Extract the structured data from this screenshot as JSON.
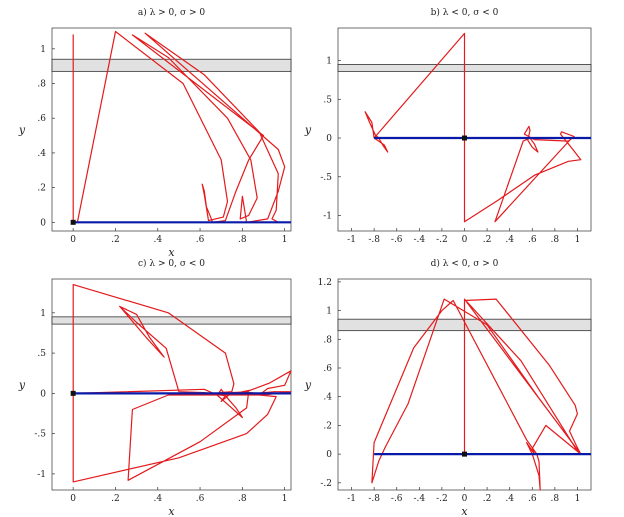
{
  "chart_data": [
    {
      "type": "line",
      "title": "a) λ > 0, σ > 0",
      "xlabel": "x",
      "ylabel": "y",
      "xlim": [
        -0.1,
        1.03
      ],
      "ylim": [
        -0.05,
        1.12
      ],
      "xticks": [
        0,
        0.2,
        0.4,
        0.6,
        0.8,
        1
      ],
      "yticks": [
        0,
        0.2,
        0.4,
        0.6,
        0.8,
        1
      ],
      "band": [
        0.87,
        0.94
      ],
      "baseline": [
        0,
        1.03
      ],
      "point": [
        0,
        0
      ],
      "series": [
        {
          "color": "#e41a1c",
          "points": [
            [
              0,
              0
            ],
            [
              0,
              1.08
            ],
            [
              0,
              0
            ],
            [
              0.02,
              0
            ],
            [
              0.2,
              1.1
            ],
            [
              0.52,
              0.8
            ],
            [
              0.7,
              0.36
            ],
            [
              0.73,
              0.12
            ],
            [
              0.71,
              0.03
            ],
            [
              0.64,
              0.01
            ],
            [
              0.62,
              0.16
            ],
            [
              0.61,
              0.22
            ],
            [
              0.62,
              0.18
            ],
            [
              0.63,
              0.09
            ],
            [
              0.66,
              0.0
            ],
            [
              0.72,
              0.01
            ],
            [
              0.77,
              0.18
            ],
            [
              0.83,
              0.36
            ],
            [
              0.9,
              0.5
            ],
            [
              0.28,
              1.08
            ],
            [
              0.45,
              0.95
            ],
            [
              0.73,
              0.6
            ],
            [
              0.84,
              0.36
            ],
            [
              0.87,
              0.14
            ],
            [
              0.83,
              0.04
            ],
            [
              0.79,
              0.02
            ],
            [
              0.8,
              0.15
            ],
            [
              0.82,
              0.0
            ],
            [
              0.92,
              0.02
            ],
            [
              0.97,
              0.18
            ],
            [
              1.0,
              0.32
            ],
            [
              0.97,
              0.42
            ],
            [
              0.34,
              1.09
            ],
            [
              0.62,
              0.85
            ],
            [
              0.88,
              0.52
            ],
            [
              0.97,
              0.28
            ],
            [
              0.96,
              0.07
            ],
            [
              0.94,
              0.02
            ],
            [
              0.97,
              0.0
            ],
            [
              1.03,
              0.0
            ]
          ]
        }
      ]
    },
    {
      "type": "line",
      "title": "b) λ < 0, σ < 0",
      "xlabel": "",
      "ylabel": "y",
      "xlim": [
        -1.12,
        1.12
      ],
      "ylim": [
        -1.2,
        1.42
      ],
      "xticks": [
        -1,
        -0.8,
        -0.6,
        -0.4,
        -0.2,
        0,
        0.2,
        0.4,
        0.6,
        0.8,
        1
      ],
      "yticks": [
        -1,
        -0.5,
        0,
        0.5,
        1
      ],
      "band": [
        0.86,
        0.95
      ],
      "baseline": [
        -0.8,
        1.12
      ],
      "point": [
        0,
        0
      ],
      "series": [
        {
          "color": "#e41a1c",
          "points": [
            [
              -0.8,
              0
            ],
            [
              -0.82,
              0.2
            ],
            [
              -0.88,
              0.34
            ],
            [
              -0.84,
              0.2
            ],
            [
              -0.79,
              0.04
            ],
            [
              -0.76,
              0.0
            ],
            [
              -0.72,
              -0.1
            ],
            [
              -0.68,
              -0.18
            ],
            [
              -0.71,
              -0.09
            ],
            [
              -0.8,
              0
            ],
            [
              0.0,
              1.35
            ],
            [
              0.0,
              -1.08
            ],
            [
              0.3,
              -0.8
            ],
            [
              0.62,
              -0.48
            ],
            [
              0.92,
              -0.3
            ],
            [
              1.03,
              -0.28
            ],
            [
              0.95,
              -0.13
            ],
            [
              0.85,
              0.05
            ],
            [
              0.86,
              0.08
            ],
            [
              0.97,
              0.02
            ],
            [
              0.92,
              -0.04
            ],
            [
              0.62,
              -0.02
            ],
            [
              0.53,
              0.05
            ],
            [
              0.57,
              0.15
            ],
            [
              0.58,
              0.1
            ],
            [
              0.56,
              -0.03
            ],
            [
              0.6,
              -0.12
            ],
            [
              0.65,
              -0.18
            ],
            [
              0.62,
              -0.08
            ],
            [
              0.58,
              0.0
            ],
            [
              0.52,
              -0.04
            ],
            [
              0.27,
              -1.08
            ],
            [
              0.95,
              0.0
            ]
          ]
        }
      ]
    },
    {
      "type": "line",
      "title": "c) λ > 0, σ < 0",
      "xlabel": "x",
      "ylabel": "y",
      "xlim": [
        -0.1,
        1.03
      ],
      "ylim": [
        -1.2,
        1.42
      ],
      "xticks": [
        0,
        0.2,
        0.4,
        0.6,
        0.8,
        1
      ],
      "yticks": [
        -1,
        -0.5,
        0,
        0.5,
        1
      ],
      "band": [
        0.86,
        0.95
      ],
      "baseline": [
        0,
        1.03
      ],
      "point": [
        0,
        0
      ],
      "series": [
        {
          "color": "#e41a1c",
          "points": [
            [
              0,
              0
            ],
            [
              0,
              1.35
            ],
            [
              0.45,
              1.0
            ],
            [
              0.72,
              0.5
            ],
            [
              0.76,
              0.12
            ],
            [
              0.75,
              0.02
            ],
            [
              0.69,
              0.01
            ],
            [
              0.7,
              0.05
            ],
            [
              0.73,
              -0.06
            ],
            [
              0.77,
              -0.18
            ],
            [
              0.8,
              -0.3
            ],
            [
              0.74,
              -0.16
            ],
            [
              0.68,
              -0.02
            ],
            [
              0.62,
              0.05
            ],
            [
              0.0,
              0.0
            ],
            [
              0.0,
              -1.1
            ],
            [
              0.5,
              -0.8
            ],
            [
              0.82,
              -0.5
            ],
            [
              0.92,
              -0.26
            ],
            [
              0.96,
              -0.04
            ],
            [
              0.88,
              -0.02
            ],
            [
              0.92,
              0.06
            ],
            [
              1.0,
              0.1
            ],
            [
              1.03,
              0.28
            ],
            [
              0.93,
              0.13
            ],
            [
              0.84,
              0.04
            ],
            [
              0.8,
              0.02
            ],
            [
              0.87,
              0.0
            ],
            [
              0.95,
              0.02
            ],
            [
              1.03,
              0.02
            ],
            [
              0.9,
              -0.02
            ],
            [
              0.45,
              -0.02
            ],
            [
              0.28,
              -0.2
            ],
            [
              0.26,
              -1.08
            ],
            [
              0.6,
              -0.6
            ],
            [
              0.82,
              -0.18
            ],
            [
              0.83,
              0.02
            ],
            [
              0.75,
              0.01
            ],
            [
              0.7,
              -0.1
            ],
            [
              0.72,
              -0.03
            ],
            [
              0.62,
              0.01
            ],
            [
              0.5,
              0.02
            ],
            [
              0.44,
              0.56
            ],
            [
              0.3,
              0.88
            ],
            [
              0.22,
              1.08
            ],
            [
              0.3,
              0.98
            ],
            [
              0.36,
              0.7
            ],
            [
              0.43,
              0.45
            ],
            [
              0.35,
              0.68
            ],
            [
              0.22,
              1.08
            ]
          ]
        }
      ]
    },
    {
      "type": "line",
      "title": "d) λ < 0, σ > 0",
      "xlabel": "x",
      "ylabel": "y",
      "xlim": [
        -1.12,
        1.12
      ],
      "ylim": [
        -0.25,
        1.22
      ],
      "xticks": [
        -1,
        -0.8,
        -0.6,
        -0.4,
        -0.2,
        0,
        0.2,
        0.4,
        0.6,
        0.8,
        1
      ],
      "yticks": [
        -0.2,
        0,
        0.2,
        0.4,
        0.6,
        0.8,
        1,
        1.2
      ],
      "band": [
        0.86,
        0.94
      ],
      "baseline": [
        -0.8,
        1.12
      ],
      "point": [
        0,
        0
      ],
      "series": [
        {
          "color": "#e41a1c",
          "points": [
            [
              0,
              0
            ],
            [
              0,
              1.07
            ],
            [
              0.28,
              1.08
            ],
            [
              0.75,
              0.62
            ],
            [
              0.98,
              0.34
            ],
            [
              1.0,
              0.28
            ],
            [
              0.93,
              0.16
            ],
            [
              0.99,
              0.06
            ],
            [
              1.03,
              0.0
            ],
            [
              0.72,
              0.2
            ],
            [
              0.6,
              0.04
            ],
            [
              0.62,
              0.0
            ],
            [
              0.55,
              0.08
            ],
            [
              0.6,
              0.0
            ],
            [
              0.66,
              -0.15
            ],
            [
              0.67,
              -0.25
            ],
            [
              0.66,
              -0.05
            ],
            [
              0.64,
              0.0
            ],
            [
              0.55,
              0.1
            ],
            [
              -0.1,
              1.07
            ],
            [
              -0.2,
              1.0
            ],
            [
              -0.45,
              0.74
            ],
            [
              -0.8,
              0.08
            ],
            [
              -0.82,
              -0.2
            ],
            [
              -0.76,
              -0.05
            ],
            [
              -0.7,
              0.05
            ],
            [
              -0.5,
              0.35
            ],
            [
              -0.18,
              1.08
            ],
            [
              0.2,
              0.9
            ],
            [
              0.65,
              0.4
            ],
            [
              0.98,
              0.05
            ],
            [
              1.03,
              0.0
            ],
            [
              0.0,
              1.08
            ],
            [
              0.5,
              0.65
            ],
            [
              1.0,
              0.02
            ]
          ]
        }
      ]
    }
  ]
}
